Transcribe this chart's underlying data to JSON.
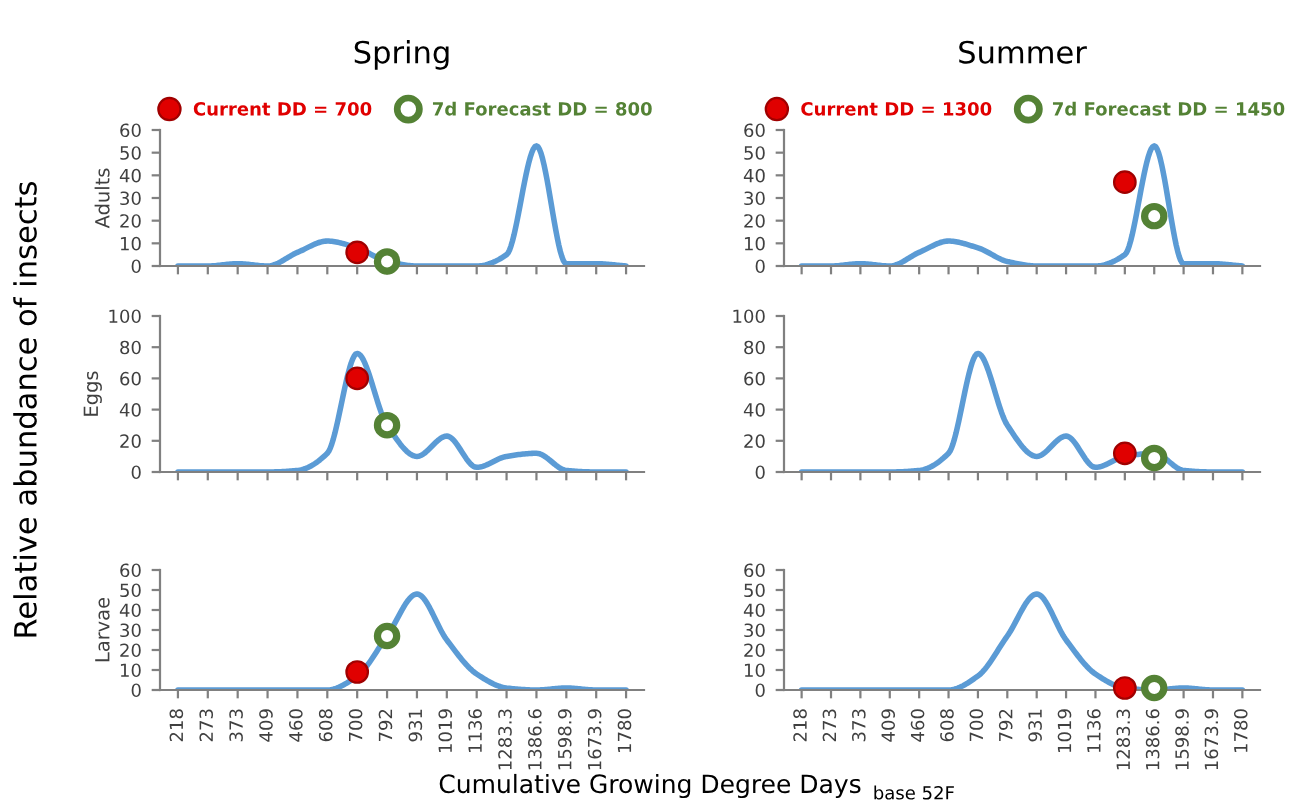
{
  "chart_data": [
    {
      "type": "line",
      "title": "Spring",
      "ylabel": "Adults",
      "categories": [
        "218",
        "273",
        "373",
        "409",
        "460",
        "608",
        "700",
        "792",
        "931",
        "1019",
        "1136",
        "1283.3",
        "1386.6",
        "1598.9",
        "1673.9",
        "1780"
      ],
      "ylim": [
        0,
        60
      ],
      "yticks": [
        0,
        10,
        20,
        30,
        40,
        50,
        60
      ],
      "tick_labels": "y",
      "legend": "top",
      "grid": false,
      "annotations": [
        "Relative abundance of insects",
        "Cumulative Growing Degree Days",
        "base 52F"
      ],
      "series": [
        {
          "color": "#5b9bd5",
          "marker": "none",
          "values": [
            0,
            0,
            1,
            0,
            6,
            11,
            8,
            2,
            0,
            0,
            0,
            5,
            53,
            1,
            1,
            0
          ]
        },
        {
          "type": "scatter",
          "name": "Current DD = 700",
          "color": "#e00000",
          "marker": "circle",
          "values": [
            null,
            null,
            null,
            null,
            null,
            null,
            6,
            null,
            null,
            null,
            null,
            null,
            null,
            null,
            null,
            null
          ]
        },
        {
          "type": "scatter",
          "name": "7d Forecast DD = 800",
          "color": "#548235",
          "marker": "circle",
          "values": [
            null,
            null,
            null,
            null,
            null,
            null,
            null,
            2,
            null,
            null,
            null,
            null,
            null,
            null,
            null,
            null
          ]
        }
      ]
    },
    {
      "type": "line",
      "title": "Summer",
      "categories": [
        "218",
        "273",
        "373",
        "409",
        "460",
        "608",
        "700",
        "792",
        "931",
        "1019",
        "1136",
        "1283.3",
        "1386.6",
        "1598.9",
        "1673.9",
        "1780"
      ],
      "ylim": [
        0,
        60
      ],
      "yticks": [
        0,
        10,
        20,
        30,
        40,
        50,
        60
      ],
      "tick_labels": "y",
      "legend": "top",
      "grid": false,
      "series": [
        {
          "color": "#5b9bd5",
          "marker": "none",
          "values": [
            0,
            0,
            1,
            0,
            6,
            11,
            8,
            2,
            0,
            0,
            0,
            5,
            53,
            1,
            1,
            0
          ]
        },
        {
          "type": "scatter",
          "name": "Current DD = 1300",
          "color": "#e00000",
          "marker": "circle",
          "values": [
            null,
            null,
            null,
            null,
            null,
            null,
            null,
            null,
            null,
            null,
            null,
            37,
            null,
            null,
            null,
            null
          ]
        },
        {
          "type": "scatter",
          "name": "7d Forecast DD = 1450",
          "color": "#548235",
          "marker": "circle",
          "values": [
            null,
            null,
            null,
            null,
            null,
            null,
            null,
            null,
            null,
            null,
            null,
            null,
            22,
            null,
            null,
            null
          ]
        }
      ]
    },
    {
      "type": "line",
      "ylabel": "Eggs",
      "categories": [
        "218",
        "273",
        "373",
        "409",
        "460",
        "608",
        "700",
        "792",
        "931",
        "1019",
        "1136",
        "1283.3",
        "1386.6",
        "1598.9",
        "1673.9",
        "1780"
      ],
      "ylim": [
        0,
        100
      ],
      "yticks": [
        0,
        20,
        40,
        60,
        80,
        100
      ],
      "tick_labels": "y",
      "grid": false,
      "series": [
        {
          "color": "#5b9bd5",
          "marker": "none",
          "values": [
            0,
            0,
            0,
            0,
            1,
            12,
            76,
            30,
            10,
            23,
            3,
            10,
            12,
            1,
            0,
            0
          ]
        },
        {
          "type": "scatter",
          "color": "#e00000",
          "marker": "circle",
          "values": [
            null,
            null,
            null,
            null,
            null,
            null,
            60,
            null,
            null,
            null,
            null,
            null,
            null,
            null,
            null,
            null
          ]
        },
        {
          "type": "scatter",
          "color": "#548235",
          "marker": "circle",
          "values": [
            null,
            null,
            null,
            null,
            null,
            null,
            null,
            30,
            null,
            null,
            null,
            null,
            null,
            null,
            null,
            null
          ]
        }
      ]
    },
    {
      "type": "line",
      "categories": [
        "218",
        "273",
        "373",
        "409",
        "460",
        "608",
        "700",
        "792",
        "931",
        "1019",
        "1136",
        "1283.3",
        "1386.6",
        "1598.9",
        "1673.9",
        "1780"
      ],
      "ylim": [
        0,
        100
      ],
      "yticks": [
        0,
        20,
        40,
        60,
        80,
        100
      ],
      "tick_labels": "y",
      "grid": false,
      "series": [
        {
          "color": "#5b9bd5",
          "marker": "none",
          "values": [
            0,
            0,
            0,
            0,
            1,
            12,
            76,
            30,
            10,
            23,
            3,
            10,
            12,
            1,
            0,
            0
          ]
        },
        {
          "type": "scatter",
          "color": "#e00000",
          "marker": "circle",
          "values": [
            null,
            null,
            null,
            null,
            null,
            null,
            null,
            null,
            null,
            null,
            null,
            12,
            null,
            null,
            null,
            null
          ]
        },
        {
          "type": "scatter",
          "color": "#548235",
          "marker": "circle",
          "values": [
            null,
            null,
            null,
            null,
            null,
            null,
            null,
            null,
            null,
            null,
            null,
            null,
            9,
            null,
            null,
            null
          ]
        }
      ]
    },
    {
      "type": "line",
      "ylabel": "Larvae",
      "categories": [
        "218",
        "273",
        "373",
        "409",
        "460",
        "608",
        "700",
        "792",
        "931",
        "1019",
        "1136",
        "1283.3",
        "1386.6",
        "1598.9",
        "1673.9",
        "1780"
      ],
      "ylim": [
        0,
        60
      ],
      "yticks": [
        0,
        10,
        20,
        30,
        40,
        50,
        60
      ],
      "grid": false,
      "series": [
        {
          "color": "#5b9bd5",
          "marker": "none",
          "values": [
            0,
            0,
            0,
            0,
            0,
            0,
            7,
            27,
            48,
            25,
            8,
            1,
            0,
            1,
            0,
            0
          ]
        },
        {
          "type": "scatter",
          "color": "#e00000",
          "marker": "circle",
          "values": [
            null,
            null,
            null,
            null,
            null,
            null,
            9,
            null,
            null,
            null,
            null,
            null,
            null,
            null,
            null,
            null
          ]
        },
        {
          "type": "scatter",
          "color": "#548235",
          "marker": "circle",
          "values": [
            null,
            null,
            null,
            null,
            null,
            null,
            null,
            27,
            null,
            null,
            null,
            null,
            null,
            null,
            null,
            null
          ]
        }
      ]
    },
    {
      "type": "line",
      "categories": [
        "218",
        "273",
        "373",
        "409",
        "460",
        "608",
        "700",
        "792",
        "931",
        "1019",
        "1136",
        "1283.3",
        "1386.6",
        "1598.9",
        "1673.9",
        "1780"
      ],
      "ylim": [
        0,
        60
      ],
      "yticks": [
        0,
        10,
        20,
        30,
        40,
        50,
        60
      ],
      "grid": false,
      "series": [
        {
          "color": "#5b9bd5",
          "marker": "none",
          "values": [
            0,
            0,
            0,
            0,
            0,
            0,
            7,
            27,
            48,
            25,
            8,
            1,
            0,
            1,
            0,
            0
          ]
        },
        {
          "type": "scatter",
          "color": "#e00000",
          "marker": "circle",
          "values": [
            null,
            null,
            null,
            null,
            null,
            null,
            null,
            null,
            null,
            null,
            null,
            1,
            null,
            null,
            null,
            null
          ]
        },
        {
          "type": "scatter",
          "color": "#548235",
          "marker": "circle",
          "values": [
            null,
            null,
            null,
            null,
            null,
            null,
            null,
            null,
            null,
            null,
            null,
            null,
            1,
            null,
            null,
            null
          ]
        }
      ]
    }
  ]
}
